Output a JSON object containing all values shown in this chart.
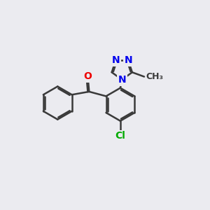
{
  "background_color": "#ebebf0",
  "bond_color": "#3a3a3a",
  "bond_width": 1.8,
  "atom_colors": {
    "N": "#0000ee",
    "O": "#ee0000",
    "Cl": "#00aa00",
    "C": "#3a3a3a"
  },
  "font_size_atom": 10,
  "font_size_methyl": 9,
  "scale": 0.85
}
